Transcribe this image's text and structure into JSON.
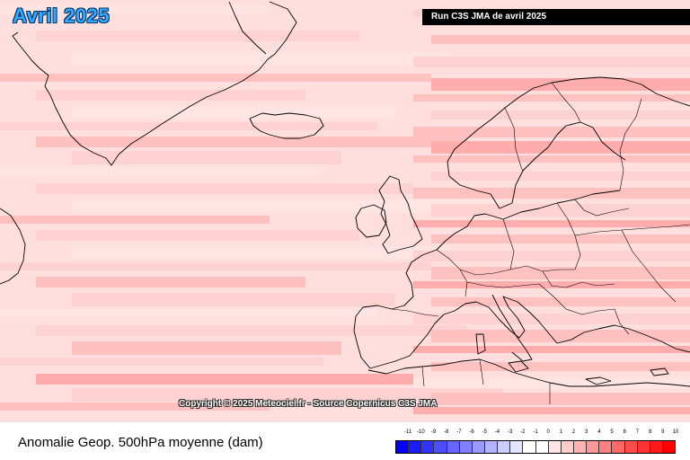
{
  "header": {
    "month_label": "Avril 2025",
    "run_label": "Run C3S JMA de avril 2025"
  },
  "map": {
    "copyright": "Copyright © 2025 Meteociel.fr - Source Copernicus C3S JMA",
    "ocean_color": "#ffdede",
    "anomaly_colors": [
      "#ffe4e4",
      "#ffd2d2",
      "#ffc0c0",
      "#ffacac"
    ]
  },
  "footer": {
    "variable_label": "Anomalie Geop. 500hPa moyenne (dam)"
  },
  "legend": {
    "ticks": [
      "-11",
      "-10",
      "-9",
      "-8",
      "-7",
      "-6",
      "-5",
      "-4",
      "-3",
      "-2",
      "-1",
      "0",
      "1",
      "2",
      "3",
      "4",
      "5",
      "6",
      "7",
      "8",
      "9",
      "10"
    ],
    "colors": [
      "#0000ff",
      "#1a1aff",
      "#3333ff",
      "#4d4dff",
      "#6666ff",
      "#8080ff",
      "#9999ff",
      "#b3b3ff",
      "#ccccff",
      "#e5e5ff",
      "#ffffff",
      "#ffffff",
      "#ffe5e5",
      "#ffcccc",
      "#ffb3b3",
      "#ff9999",
      "#ff8080",
      "#ff6666",
      "#ff4d4d",
      "#ff3333",
      "#ff1a1a",
      "#ff0000"
    ]
  }
}
